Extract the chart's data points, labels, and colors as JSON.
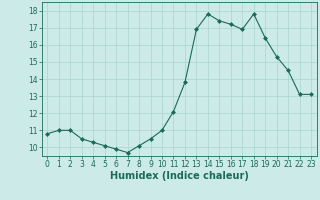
{
  "x": [
    0,
    1,
    2,
    3,
    4,
    5,
    6,
    7,
    8,
    9,
    10,
    11,
    12,
    13,
    14,
    15,
    16,
    17,
    18,
    19,
    20,
    21,
    22,
    23
  ],
  "y": [
    10.8,
    11.0,
    11.0,
    10.5,
    10.3,
    10.1,
    9.9,
    9.7,
    10.1,
    10.5,
    11.0,
    12.1,
    13.8,
    16.9,
    17.8,
    17.4,
    17.2,
    16.9,
    17.8,
    16.4,
    15.3,
    14.5,
    13.1,
    13.1
  ],
  "line_color": "#1a6b5a",
  "marker": "D",
  "marker_size": 2.0,
  "bg_color": "#cceae7",
  "grid_color": "#aad4cf",
  "xlabel": "Humidex (Indice chaleur)",
  "ylim": [
    9.5,
    18.5
  ],
  "xlim": [
    -0.5,
    23.5
  ],
  "yticks": [
    10,
    11,
    12,
    13,
    14,
    15,
    16,
    17,
    18
  ],
  "xticks": [
    0,
    1,
    2,
    3,
    4,
    5,
    6,
    7,
    8,
    9,
    10,
    11,
    12,
    13,
    14,
    15,
    16,
    17,
    18,
    19,
    20,
    21,
    22,
    23
  ],
  "tick_color": "#1a6b5a",
  "tick_fontsize": 5.5,
  "xlabel_fontsize": 7.0,
  "xlabel_fontweight": "bold",
  "line_width": 0.8
}
